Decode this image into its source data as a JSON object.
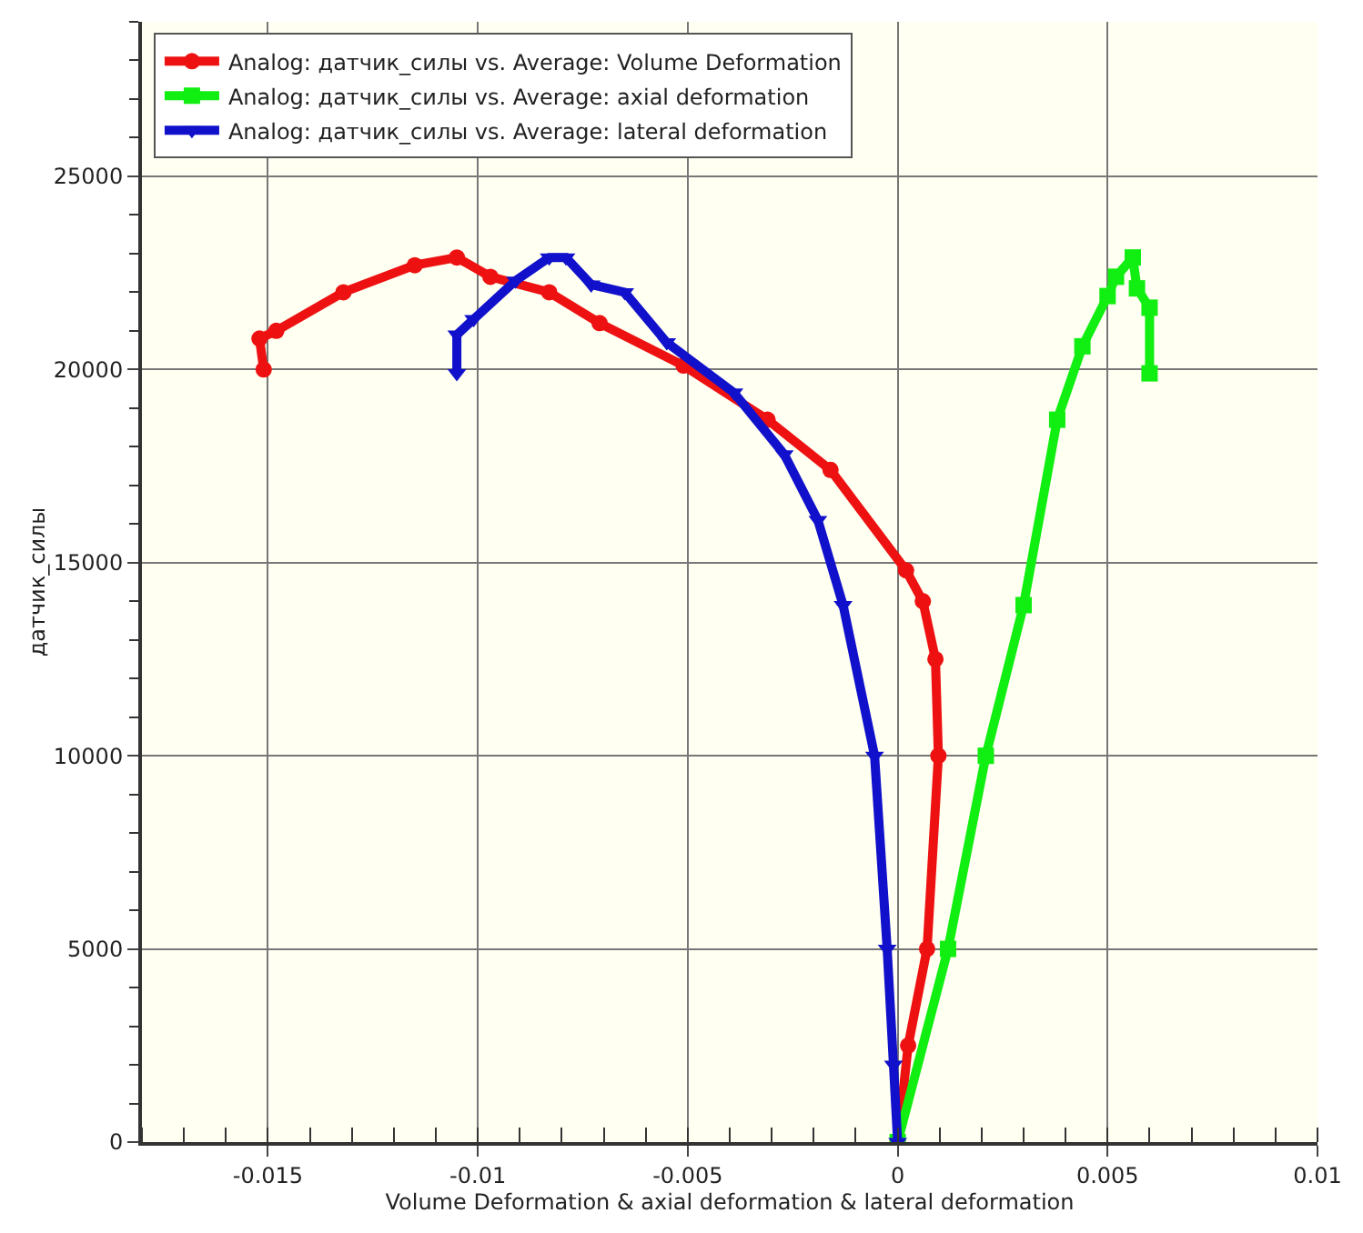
{
  "chart_data": {
    "type": "line",
    "xlabel": "Volume Deformation & axial deformation & lateral deformation",
    "ylabel": "датчик_силы",
    "xlim": [
      -0.018,
      0.01
    ],
    "xticks": [
      -0.015,
      -0.01,
      -0.005,
      0,
      0.005,
      0.01
    ],
    "ylim": [
      0,
      29000
    ],
    "yticks": [
      0,
      5000,
      10000,
      15000,
      20000,
      25000
    ],
    "grid": true,
    "legend": "top left",
    "line_style": "solid",
    "series": [
      {
        "name": "Analog: датчик_силы vs. Average: Volume Deformation",
        "color": "#ee1111",
        "marker": "circle",
        "x": [
          0,
          0.00025,
          0.0007,
          0.00097,
          0.0009,
          0.0006,
          0.0002,
          -0.0016,
          -0.0031,
          -0.0051,
          -0.0071,
          -0.0083,
          -0.0097,
          -0.0105,
          -0.0115,
          -0.0132,
          -0.0148,
          -0.0152,
          -0.0151
        ],
        "values": [
          0,
          2500,
          5000,
          10000,
          12500,
          14000,
          14800,
          17400,
          18700,
          20100,
          21200,
          22000,
          22400,
          22900,
          22700,
          22000,
          21000,
          20800,
          20000
        ]
      },
      {
        "name": "Analog: датчик_силы vs. Average: axial deformation",
        "color": "#11ee11",
        "marker": "square",
        "x": [
          0,
          0.0012,
          0.0021,
          0.003,
          0.0038,
          0.0044,
          0.005,
          0.0052,
          0.0056,
          0.0057,
          0.006,
          0.006
        ],
        "values": [
          0,
          5000,
          10000,
          13900,
          18700,
          20600,
          21900,
          22400,
          22900,
          22100,
          21600,
          19900
        ]
      },
      {
        "name": "Analog: датчик_силы vs. Average: lateral deformation",
        "color": "#1111cc",
        "marker": "triangle-down",
        "x": [
          0,
          -0.0001,
          -0.00025,
          -0.00055,
          -0.0013,
          -0.0019,
          -0.0027,
          -0.0039,
          -0.0055,
          -0.0065,
          -0.0073,
          -0.0079,
          -0.0083,
          -0.0091,
          -0.0101,
          -0.0105,
          -0.0105
        ],
        "values": [
          0,
          2000,
          5000,
          10000,
          13900,
          16100,
          17800,
          19400,
          20700,
          22000,
          22200,
          22900,
          22900,
          22300,
          21300,
          20900,
          19900
        ]
      }
    ]
  }
}
